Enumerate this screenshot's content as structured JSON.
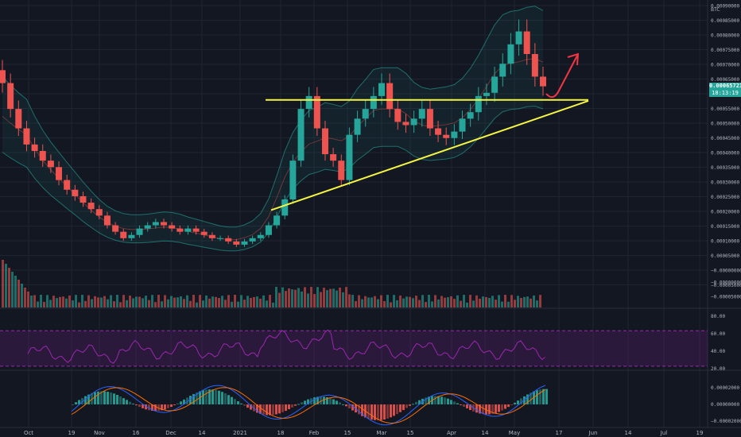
{
  "colors": {
    "background": "#131722",
    "grid": "#1f2432",
    "up": "#26a69a",
    "down": "#ef5350",
    "axis_text": "#b2b5be",
    "trendline": "#f5f543",
    "arrow": "#f23645",
    "rsi": "#9c27b0",
    "rsi_band": "#2a1a3a",
    "macd": "#2962ff",
    "signal": "#ff6d00",
    "bb": "#26a69a"
  },
  "price_badge": {
    "price": "0.00065721",
    "countdown": "18:13:19"
  },
  "chart_data": [
    {
      "type": "candlestick",
      "name": "price",
      "unit_label": "BTC",
      "ylim": [
        -5e-07,
        0.0009
      ],
      "y_ticks": [
        "0.00090000",
        "0.00085000",
        "0.00080000",
        "0.00075000",
        "0.00070000",
        "0.00065000",
        "0.00060000",
        "0.00055000",
        "0.00050000",
        "0.00045000",
        "0.00040000",
        "0.00035000",
        "0.00030000",
        "0.00025000",
        "0.00020000",
        "0.00015000",
        "0.00010000",
        "0.00005000",
        "−0.00000000",
        "−0.00005000"
      ],
      "x_ticks": [
        "Oct",
        "19",
        "Nov",
        "16",
        "Dec",
        "14",
        "2021",
        "18",
        "Feb",
        "15",
        "Mar",
        "15",
        "Apr",
        "14",
        "May",
        "17",
        "Jun",
        "14",
        "Jul",
        "19"
      ],
      "series": [
        {
          "name": "close",
          "values": [
            0.00066,
            0.00058,
            0.00052,
            0.00047,
            0.00045,
            0.00042,
            0.0004,
            0.00036,
            0.00033,
            0.00031,
            0.00029,
            0.00027,
            0.00025,
            0.00022,
            0.0002,
            0.00018,
            0.00019,
            0.00021,
            0.00022,
            0.00023,
            0.00022,
            0.00021,
            0.0002,
            0.00021,
            0.0002,
            0.00019,
            0.00018,
            0.00018,
            0.00017,
            0.00016,
            0.00017,
            0.00018,
            0.00019,
            0.00022,
            0.00025,
            0.0003,
            0.00042,
            0.00058,
            0.00062,
            0.00052,
            0.00044,
            0.00042,
            0.00036,
            0.0005,
            0.00055,
            0.00058,
            0.00062,
            0.00066,
            0.00058,
            0.00054,
            0.00053,
            0.00055,
            0.00058,
            0.00052,
            0.0005,
            0.00049,
            0.00051,
            0.00055,
            0.00057,
            0.00062,
            0.00063,
            0.00068,
            0.00072,
            0.00078,
            0.00082,
            0.00075,
            0.00068,
            0.00065
          ]
        }
      ],
      "annotations": {
        "resistance_level": 0.000608,
        "support_line": [
          [
            0.000267,
            0.000605
          ]
        ]
      }
    },
    {
      "type": "bar",
      "name": "volume",
      "y_ticks": [
        "−0.00000000",
        "−0.00005000"
      ]
    },
    {
      "type": "line",
      "name": "RSI",
      "ylim": [
        20,
        90
      ],
      "y_ticks": [
        "80.00",
        "60.00",
        "40.00",
        "20.00"
      ],
      "bands": [
        30,
        70
      ]
    },
    {
      "type": "bar",
      "name": "MACD",
      "y_ticks": [
        "0.00002000",
        "0.00000000",
        "−0.00002000"
      ]
    }
  ]
}
